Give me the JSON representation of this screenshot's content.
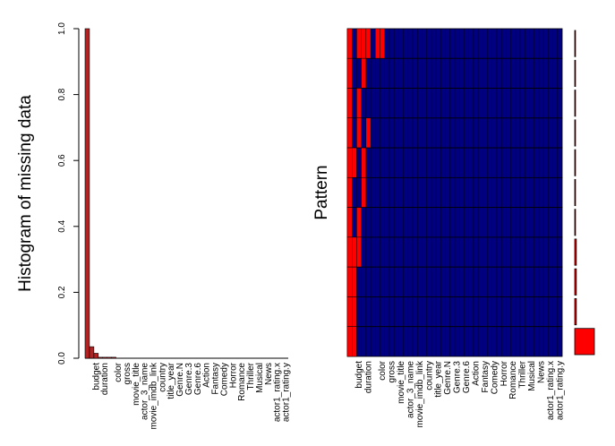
{
  "chart_data": [
    {
      "type": "bar",
      "ylabel": "Histogram of missing data",
      "color": "#b22222",
      "categories": [
        null,
        null,
        "budget",
        null,
        "duration",
        null,
        null,
        "color",
        null,
        "gross",
        null,
        "movie_title",
        null,
        "actor_3_name",
        null,
        "movie_imdb_link",
        null,
        "country",
        null,
        "title_year",
        null,
        "Genre.N",
        null,
        "Genre.3",
        null,
        "Genre.6",
        null,
        "Action",
        null,
        "Fantasy",
        null,
        "Comedy",
        null,
        "Horror",
        null,
        "Romance",
        null,
        "Thriller",
        null,
        "Musical",
        null,
        "News",
        null,
        "actor1_rating.x",
        null,
        "actor1_rating.y"
      ],
      "values": [
        1.0,
        0.035,
        0.015,
        0.003,
        0.003,
        0.003,
        0.003,
        0,
        0,
        0,
        0,
        0,
        0,
        0,
        0,
        0,
        0,
        0,
        0,
        0,
        0,
        0,
        0,
        0,
        0,
        0,
        0,
        0,
        0,
        0,
        0,
        0,
        0,
        0,
        0,
        0,
        0,
        0,
        0,
        0,
        0,
        0,
        0,
        0,
        0,
        0
      ],
      "ylim": [
        0,
        1
      ],
      "yticks": [
        {
          "value": 0,
          "label": "0.0"
        },
        0.2,
        0.4,
        0.6,
        0.8,
        {
          "value": 1,
          "label": "1.0"
        }
      ]
    },
    {
      "type": "pattern",
      "ylabel": "Pattern",
      "missing_color": "#ff0000",
      "present_color": "#000080",
      "categories": [
        null,
        null,
        "budget",
        null,
        "duration",
        null,
        null,
        "color",
        null,
        "gross",
        null,
        "movie_title",
        null,
        "actor_3_name",
        null,
        "movie_imdb_link",
        null,
        "country",
        null,
        "title_year",
        null,
        "Genre.N",
        null,
        "Genre.3",
        null,
        "Genre.6",
        null,
        "Action",
        null,
        "Fantasy",
        null,
        "Comedy",
        null,
        "Horror",
        null,
        "Romance",
        null,
        "Thriller",
        null,
        "Musical",
        null,
        "News",
        null,
        "actor1_rating.x",
        null,
        "actor1_rating.y"
      ],
      "rows": [
        {
          "missing": [
            0,
            2,
            3,
            4,
            6,
            7
          ],
          "count": 1
        },
        {
          "missing": [
            0,
            3
          ],
          "count": 1
        },
        {
          "missing": [
            0,
            2
          ],
          "count": 1
        },
        {
          "missing": [
            0,
            2,
            4
          ],
          "count": 1
        },
        {
          "missing": [
            0,
            1,
            3
          ],
          "count": 1
        },
        {
          "missing": [
            0,
            3
          ],
          "count": 1
        },
        {
          "missing": [
            0,
            2
          ],
          "count": 1
        },
        {
          "missing": [
            0,
            1,
            2
          ],
          "count": 2
        },
        {
          "missing": [
            0,
            1
          ],
          "count": 2
        },
        {
          "missing": [
            0,
            1
          ],
          "count": 2
        },
        {
          "missing": [
            0,
            1
          ],
          "count": 24
        }
      ]
    }
  ]
}
